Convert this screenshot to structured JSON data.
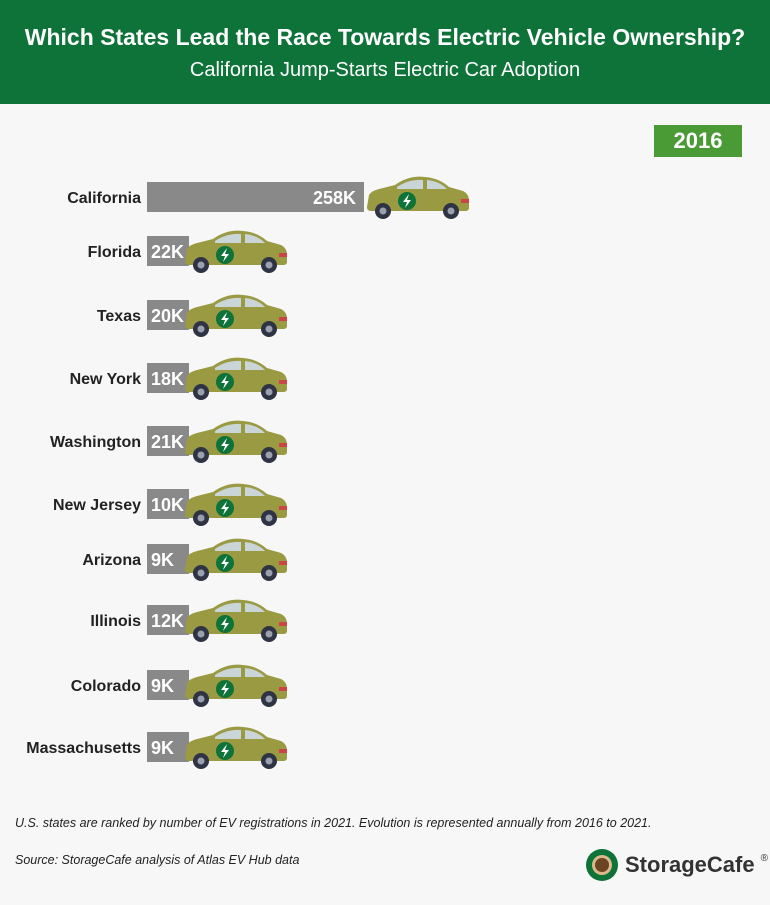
{
  "header": {
    "title": "Which States Lead the Race Towards Electric Vehicle Ownership?",
    "subtitle": "California Jump-Starts Electric Car Adoption"
  },
  "year": "2016",
  "chart_data": {
    "type": "bar",
    "orientation": "horizontal",
    "categories": [
      "California",
      "Florida",
      "Texas",
      "New York",
      "Washington",
      "New Jersey",
      "Arizona",
      "Illinois",
      "Colorado",
      "Massachusetts"
    ],
    "values": [
      258,
      22,
      20,
      18,
      21,
      10,
      9,
      12,
      9,
      9
    ],
    "value_labels": [
      "258K",
      "22K",
      "20K",
      "18K",
      "21K",
      "10K",
      "9K",
      "12K",
      "9K",
      "9K"
    ],
    "bar_color": "#898989",
    "car_color": "#9a9a42",
    "badge_color": "#0e7339"
  },
  "footnote": "U.S. states are ranked by number of EV registrations in 2021. Evolution is represented annually from 2016 to 2021.",
  "source": "Source: StorageCafe analysis of Atlas EV Hub data",
  "brand": {
    "name": "StorageCafe",
    "mark": "®"
  },
  "colors": {
    "header_bg": "#0e7339",
    "year_badge_bg": "#4a9a36",
    "page_bg": "#f7f7f7"
  }
}
